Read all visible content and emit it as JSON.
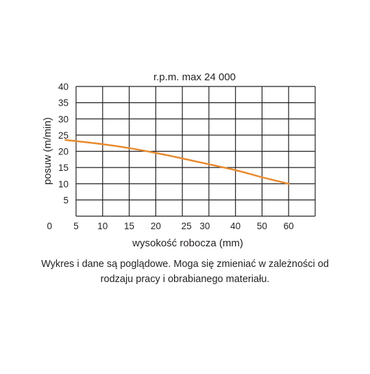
{
  "chart_data": {
    "type": "line",
    "title": "r.p.m. max 24 000",
    "xlabel": "wysokość robocza (mm)",
    "ylabel": "posuw (m/min)",
    "x_ticks": [
      "0",
      "5",
      "10",
      "15",
      "20",
      "25",
      "30",
      "40",
      "50",
      "60"
    ],
    "y_ticks": [
      "40",
      "35",
      "30",
      "25",
      "20",
      "15",
      "10",
      "5"
    ],
    "ylim": [
      0,
      40
    ],
    "grid": true,
    "series": [
      {
        "x": [
          3,
          10,
          15,
          20,
          25,
          30,
          40,
          50,
          60
        ],
        "y": [
          23.5,
          22.2,
          21.0,
          19.5,
          17.8,
          16.0,
          14.2,
          12.0,
          10.0
        ]
      }
    ],
    "line_color": "#e88a2e"
  },
  "note": {
    "line1": "Wykres i dane są poglądowe. Moga się zmieniać w zależności od",
    "line2": "rodzaju pracy i obrabianego materiału."
  }
}
